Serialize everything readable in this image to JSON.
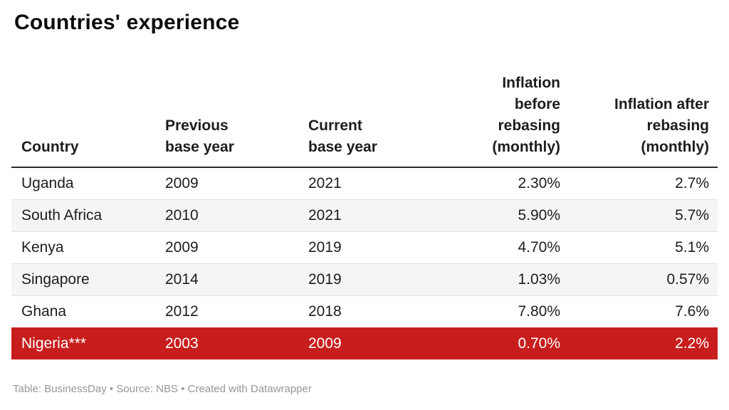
{
  "title": "Countries' experience",
  "footer": "Table: BusinessDay • Source: NBS • Created with Datawrapper",
  "colors": {
    "page_bg": "#ffffff",
    "title_text": "#0d0d0d",
    "header_text": "#1d1d1d",
    "body_text": "#1d1d1d",
    "header_rule": "#2b2b2b",
    "row_divider": "#e1e1e1",
    "zebra_bg": "#f5f5f5",
    "highlight_bg": "#c71e1d",
    "highlight_text": "#ffffff",
    "footer_text": "#979797"
  },
  "chart_data": {
    "type": "table",
    "title": "Countries' experience",
    "columns": [
      {
        "label": "Country",
        "wrapped_label": "Country",
        "align": "left"
      },
      {
        "label": "Previous base year",
        "wrapped_label": "Previous\nbase year",
        "align": "left"
      },
      {
        "label": "Current base year",
        "wrapped_label": "Current\nbase year",
        "align": "left"
      },
      {
        "label": "Inflation before rebasing (monthly)",
        "wrapped_label": "Inflation\nbefore\nrebasing\n(monthly)",
        "align": "right"
      },
      {
        "label": "Inflation after rebasing (monthly)",
        "wrapped_label": "Inflation after\nrebasing\n(monthly)",
        "align": "right"
      }
    ],
    "rows": [
      {
        "country": "Uganda",
        "previous_base_year": "2009",
        "current_base_year": "2021",
        "inflation_before": "2.30%",
        "inflation_after": "2.7%",
        "highlight": false
      },
      {
        "country": "South Africa",
        "previous_base_year": "2010",
        "current_base_year": "2021",
        "inflation_before": "5.90%",
        "inflation_after": "5.7%",
        "highlight": false
      },
      {
        "country": "Kenya",
        "previous_base_year": "2009",
        "current_base_year": "2019",
        "inflation_before": "4.70%",
        "inflation_after": "5.1%",
        "highlight": false
      },
      {
        "country": "Singapore",
        "previous_base_year": "2014",
        "current_base_year": "2019",
        "inflation_before": "1.03%",
        "inflation_after": "0.57%",
        "highlight": false
      },
      {
        "country": "Ghana",
        "previous_base_year": "2012",
        "current_base_year": "2018",
        "inflation_before": "7.80%",
        "inflation_after": "7.6%",
        "highlight": false
      },
      {
        "country": "Nigeria***",
        "previous_base_year": "2003",
        "current_base_year": "2009",
        "inflation_before": "0.70%",
        "inflation_after": "2.2%",
        "highlight": true
      }
    ],
    "highlighted_row": "Nigeria***",
    "legend_position": "none",
    "grid": "row-dividers",
    "footer": "Table: BusinessDay • Source: NBS • Created with Datawrapper"
  }
}
